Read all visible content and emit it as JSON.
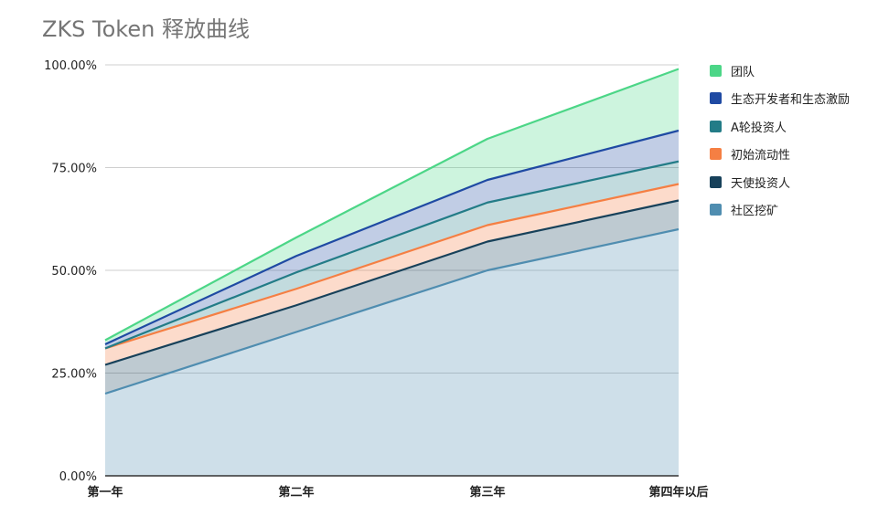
{
  "chart_data": {
    "type": "area",
    "title": "ZKS Token 释放曲线",
    "categories": [
      "第一年",
      "第二年",
      "第三年",
      "第四年以后"
    ],
    "y_ticks": [
      "0.00%",
      "25.00%",
      "50.00%",
      "75.00%",
      "100.00%"
    ],
    "ylim": [
      0,
      100
    ],
    "grid": true,
    "legend_position": "right",
    "stacked": true,
    "series": [
      {
        "name": "社区挖矿",
        "color": "#4f8db0",
        "cumulative": [
          20,
          35,
          50,
          60
        ]
      },
      {
        "name": "天使投资人",
        "color": "#17415a",
        "cumulative": [
          27,
          41.5,
          57,
          67
        ]
      },
      {
        "name": "初始流动性",
        "color": "#f57f43",
        "cumulative": [
          31,
          45.5,
          61,
          71
        ]
      },
      {
        "name": "A轮投资人",
        "color": "#237c87",
        "cumulative": [
          31,
          49.5,
          66.5,
          76.5
        ]
      },
      {
        "name": "生态开发者和生态激励",
        "color": "#1f4aa3",
        "cumulative": [
          32,
          53.5,
          72,
          84
        ]
      },
      {
        "name": "团队",
        "color": "#4cd687",
        "cumulative": [
          33,
          58,
          82,
          99
        ]
      }
    ]
  },
  "legend_order": [
    {
      "label": "团队",
      "color": "#4cd687"
    },
    {
      "label": "生态开发者和生态激励",
      "color": "#1f4aa3"
    },
    {
      "label": "A轮投资人",
      "color": "#237c87"
    },
    {
      "label": "初始流动性",
      "color": "#f57f43"
    },
    {
      "label": "天使投资人",
      "color": "#17415a"
    },
    {
      "label": "社区挖矿",
      "color": "#4f8db0"
    }
  ]
}
